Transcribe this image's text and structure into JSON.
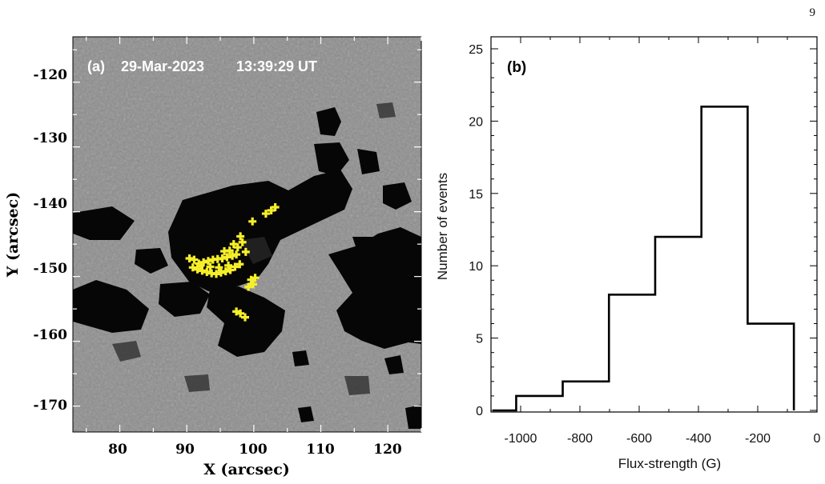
{
  "page_number": "9",
  "panel_a": {
    "label": "(a)",
    "date": "29-Mar-2023",
    "time": "13:39:29 UT",
    "xlabel": "X (arcsec)",
    "ylabel": "Y (arcsec)",
    "xticks": [
      "80",
      "90",
      "100",
      "110",
      "120"
    ],
    "yticks": [
      "-120",
      "-130",
      "-140",
      "-150",
      "-160",
      "-170"
    ],
    "marker_color": "#f5ee2a"
  },
  "chart_data": [
    {
      "type": "image",
      "xlim": [
        73,
        125
      ],
      "ylim": [
        -174,
        -113
      ],
      "xlabel": "X (arcsec)",
      "ylabel": "Y (arcsec)",
      "markers": [
        [
          103.2,
          -139.3
        ],
        [
          102.6,
          -139.8
        ],
        [
          101.8,
          -140.3
        ],
        [
          99.8,
          -141.5
        ],
        [
          98.0,
          -143.8
        ],
        [
          98.3,
          -144.7
        ],
        [
          97.6,
          -145.5
        ],
        [
          98.8,
          -146.2
        ],
        [
          97.4,
          -146.6
        ],
        [
          96.8,
          -146.8
        ],
        [
          96.0,
          -147.0
        ],
        [
          95.3,
          -147.2
        ],
        [
          94.6,
          -147.3
        ],
        [
          93.9,
          -147.4
        ],
        [
          93.2,
          -147.6
        ],
        [
          92.5,
          -147.8
        ],
        [
          91.8,
          -148.0
        ],
        [
          91.1,
          -147.4
        ],
        [
          90.4,
          -147.2
        ],
        [
          90.9,
          -148.6
        ],
        [
          91.6,
          -148.9
        ],
        [
          92.3,
          -149.1
        ],
        [
          93.0,
          -149.3
        ],
        [
          93.7,
          -149.5
        ],
        [
          94.4,
          -149.6
        ],
        [
          95.1,
          -149.4
        ],
        [
          95.8,
          -149.2
        ],
        [
          96.5,
          -149.0
        ],
        [
          97.2,
          -148.5
        ],
        [
          97.9,
          -148.1
        ],
        [
          96.2,
          -148.3
        ],
        [
          94.8,
          -148.6
        ],
        [
          93.5,
          -148.5
        ],
        [
          92.0,
          -148.3
        ],
        [
          96.4,
          -146.0
        ],
        [
          97.0,
          -145.0
        ],
        [
          95.6,
          -146.1
        ],
        [
          99.6,
          -150.5
        ],
        [
          99.9,
          -151.2
        ],
        [
          99.2,
          -151.6
        ],
        [
          100.2,
          -150.2
        ],
        [
          98.0,
          -155.7
        ],
        [
          98.7,
          -156.3
        ],
        [
          97.4,
          -155.4
        ]
      ]
    },
    {
      "type": "histogram",
      "title": "(b)",
      "xlabel": "Flux-strength (G)",
      "ylabel": "Number of events",
      "xlim": [
        -1100,
        0
      ],
      "ylim": [
        0,
        25
      ],
      "xticks": [
        -1000,
        -800,
        -600,
        -400,
        -200,
        0
      ],
      "yticks": [
        0,
        5,
        10,
        15,
        20,
        25
      ],
      "bin_edges": [
        -1015,
        -858,
        -702,
        -546,
        -390,
        -234,
        -78
      ],
      "values": [
        1,
        2,
        8,
        12,
        21,
        6
      ]
    }
  ]
}
